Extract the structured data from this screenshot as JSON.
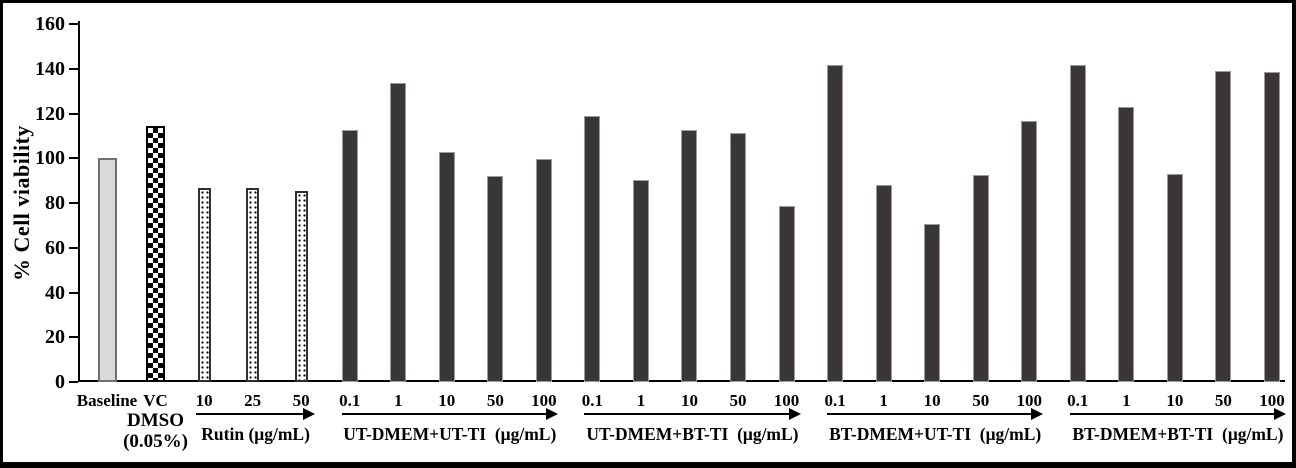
{
  "chart_data": {
    "type": "bar",
    "title": "",
    "xlabel": "",
    "ylabel": "% Cell viability",
    "ylim": [
      0,
      160
    ],
    "yticks": [
      0,
      20,
      40,
      60,
      80,
      100,
      120,
      140,
      160
    ],
    "grid": false,
    "legend": false,
    "colors": {
      "dark_bar": "#3a3637",
      "light_bar": "#d9d9d9",
      "axis": "#000000",
      "background": "#ffffff",
      "frame_border": "#000000"
    },
    "groups": [
      {
        "id": "baseline",
        "group_label": null,
        "bars": [
          {
            "label": "Baseline",
            "value": 100,
            "pattern": "solid-light-gray"
          }
        ]
      },
      {
        "id": "vehicle-control",
        "group_label": null,
        "sublabel_lines": [
          "DMSO",
          "(0.05%)"
        ],
        "bars": [
          {
            "label": "VC",
            "value": 114.5,
            "pattern": "checkerboard"
          }
        ]
      },
      {
        "id": "rutin",
        "group_label": "Rutin (μg/mL)",
        "has_arrow": true,
        "bars": [
          {
            "label": "10",
            "value": 86.5,
            "pattern": "dotted"
          },
          {
            "label": "25",
            "value": 86.5,
            "pattern": "dotted"
          },
          {
            "label": "50",
            "value": 85.5,
            "pattern": "dotted"
          }
        ]
      },
      {
        "id": "ut-dmem-ut-ti",
        "group_label": "UT-DMEM+UT-TI  (μg/mL)",
        "has_arrow": true,
        "bars": [
          {
            "label": "0.1",
            "value": 112.5,
            "pattern": "solid-dark"
          },
          {
            "label": "1",
            "value": 133.5,
            "pattern": "solid-dark"
          },
          {
            "label": "10",
            "value": 103,
            "pattern": "solid-dark"
          },
          {
            "label": "50",
            "value": 92,
            "pattern": "solid-dark"
          },
          {
            "label": "100",
            "value": 99.5,
            "pattern": "solid-dark"
          }
        ]
      },
      {
        "id": "ut-dmem-bt-ti",
        "group_label": "UT-DMEM+BT-TI  (μg/mL)",
        "has_arrow": true,
        "bars": [
          {
            "label": "0.1",
            "value": 119,
            "pattern": "solid-dark"
          },
          {
            "label": "1",
            "value": 90.5,
            "pattern": "solid-dark"
          },
          {
            "label": "10",
            "value": 112.5,
            "pattern": "solid-dark"
          },
          {
            "label": "50",
            "value": 111.5,
            "pattern": "solid-dark"
          },
          {
            "label": "100",
            "value": 78.5,
            "pattern": "solid-dark"
          }
        ]
      },
      {
        "id": "bt-dmem-ut-ti",
        "group_label": "BT-DMEM+UT-TI  (μg/mL)",
        "has_arrow": true,
        "bars": [
          {
            "label": "0.1",
            "value": 141.5,
            "pattern": "solid-dark"
          },
          {
            "label": "1",
            "value": 88,
            "pattern": "solid-dark"
          },
          {
            "label": "10",
            "value": 70.5,
            "pattern": "solid-dark"
          },
          {
            "label": "50",
            "value": 92.5,
            "pattern": "solid-dark"
          },
          {
            "label": "100",
            "value": 116.5,
            "pattern": "solid-dark"
          }
        ]
      },
      {
        "id": "bt-dmem-bt-ti",
        "group_label": "BT-DMEM+BT-TI  (μg/mL)",
        "has_arrow": true,
        "bars": [
          {
            "label": "0.1",
            "value": 141.5,
            "pattern": "solid-dark"
          },
          {
            "label": "1",
            "value": 123,
            "pattern": "solid-dark"
          },
          {
            "label": "10",
            "value": 93,
            "pattern": "solid-dark"
          },
          {
            "label": "50",
            "value": 139,
            "pattern": "solid-dark"
          },
          {
            "label": "100",
            "value": 138.5,
            "pattern": "solid-dark"
          }
        ]
      }
    ]
  }
}
